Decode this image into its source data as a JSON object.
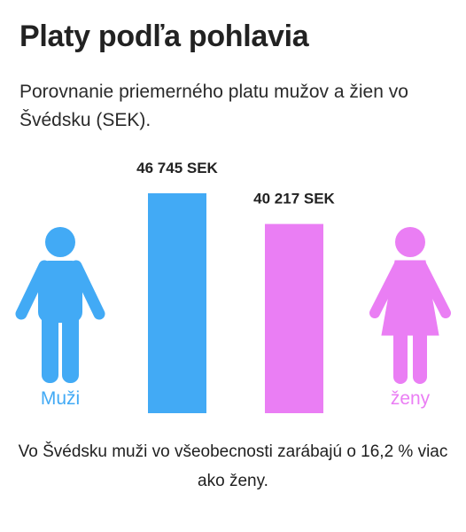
{
  "title": "Platy podľa pohlavia",
  "subtitle": "Porovnanie priemerného platu mužov a žien vo Švédsku (SEK).",
  "footer": "Vo Švédsku muži vo všeobecnosti zarábajú o 16,2 % viac ako ženy.",
  "colors": {
    "men": "#42aaf5",
    "women": "#ea7ef4"
  },
  "icons": {
    "men": "male-figure-icon",
    "women": "female-figure-icon"
  },
  "chart_data": {
    "type": "bar",
    "title": "Platy podľa pohlavia",
    "subtitle": "Porovnanie priemerného platu mužov a žien vo Švédsku (SEK).",
    "categories": [
      "Muži",
      "ženy"
    ],
    "values": [
      46745,
      40217
    ],
    "value_labels": [
      "46 745 SEK",
      "40 217 SEK"
    ],
    "unit": "SEK",
    "ylim": [
      0,
      55000
    ],
    "grid": false,
    "legend": "none"
  }
}
